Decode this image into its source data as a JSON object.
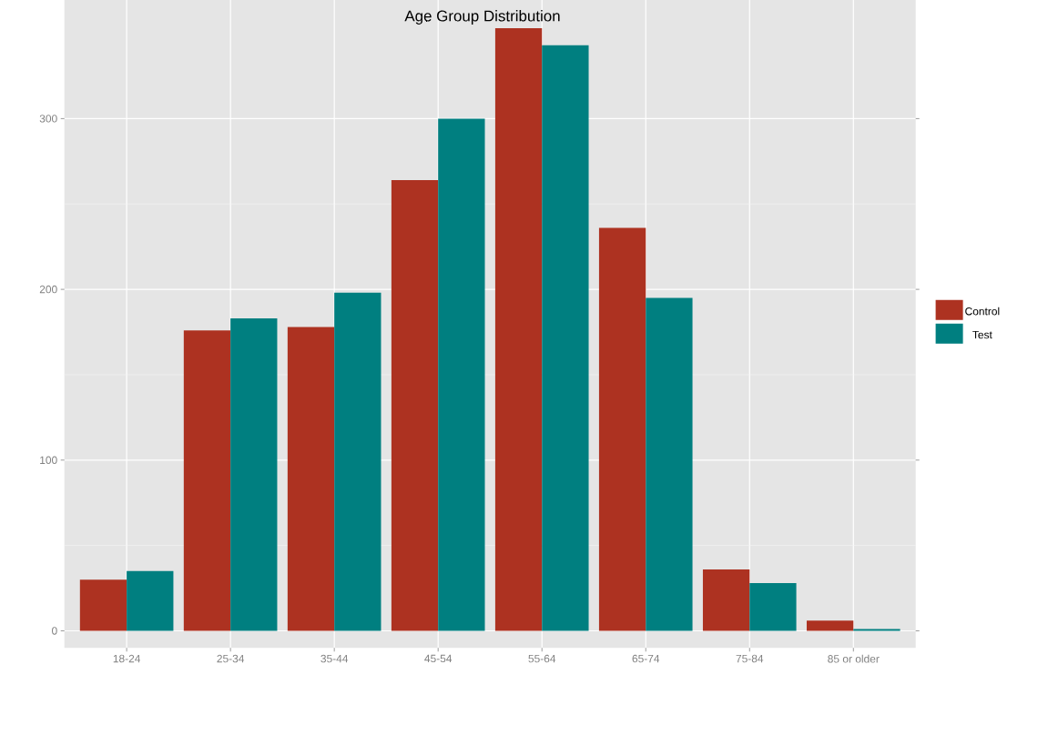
{
  "chart_data": {
    "type": "bar",
    "title": "Age Group Distribution",
    "categories": [
      "18-24",
      "25-34",
      "35-44",
      "45-54",
      "55-64",
      "65-74",
      "75-84",
      "85 or older"
    ],
    "series": [
      {
        "name": "Control",
        "color": "#ad3221",
        "values": [
          30,
          176,
          178,
          264,
          353,
          236,
          36,
          6
        ]
      },
      {
        "name": "Test",
        "color": "#007f80",
        "values": [
          35,
          183,
          198,
          300,
          343,
          195,
          28,
          1
        ]
      }
    ],
    "ylim": [
      -10,
      372
    ],
    "yticks": [
      0,
      100,
      200,
      300
    ],
    "grid": true,
    "legend": "right"
  }
}
